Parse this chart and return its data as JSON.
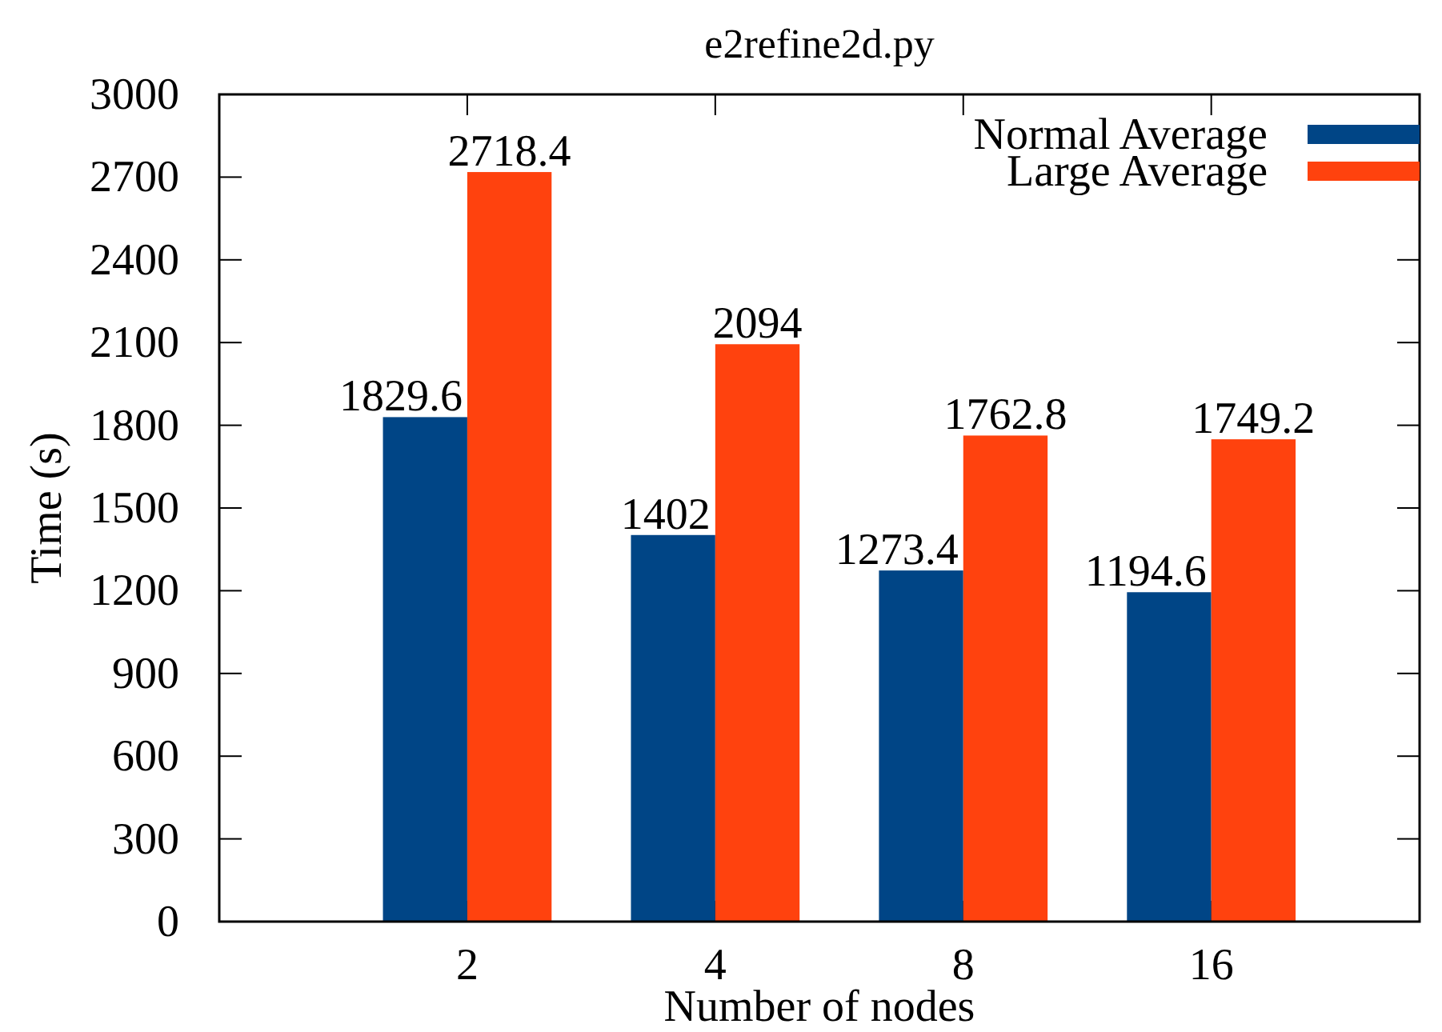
{
  "chart_data": {
    "type": "bar",
    "title": "e2refine2d.py",
    "xlabel": "Number of nodes",
    "ylabel": "Time (s)",
    "categories": [
      "2",
      "4",
      "8",
      "16"
    ],
    "series": [
      {
        "name": "Normal Average",
        "color": "#004586",
        "values": [
          1829.6,
          1402,
          1273.4,
          1194.6
        ]
      },
      {
        "name": "Large Average",
        "color": "#ff420e",
        "values": [
          2718.4,
          2094,
          1762.8,
          1749.2
        ]
      }
    ],
    "ylim": [
      0,
      3000
    ],
    "yticks": [
      0,
      300,
      600,
      900,
      1200,
      1500,
      1800,
      2100,
      2400,
      2700,
      3000
    ],
    "data_labels": true,
    "legend": "top right"
  }
}
